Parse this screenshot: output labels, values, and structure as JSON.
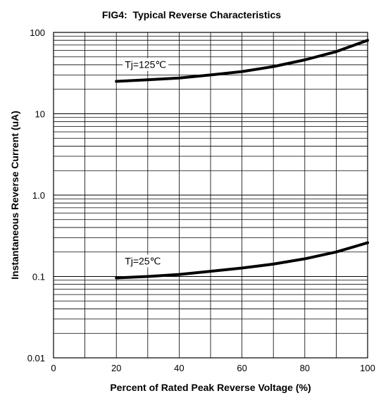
{
  "chart_data": {
    "type": "line",
    "title": "FIG4:  Typical Reverse Characteristics",
    "xlabel": "Percent of Rated Peak Reverse Voltage (%)",
    "ylabel": "Instantaneous Reverse Current (uA)",
    "xlim": [
      0,
      100
    ],
    "ylim": [
      0.01,
      100
    ],
    "yscale": "log",
    "grid": true,
    "x_ticks": [
      "0",
      "20",
      "40",
      "60",
      "80",
      "100"
    ],
    "y_ticks": [
      "0.01",
      "0.1",
      "1.0",
      "10",
      "100"
    ],
    "series": [
      {
        "name": "Tj=125℃",
        "x": [
          20,
          30,
          40,
          50,
          60,
          70,
          80,
          90,
          100
        ],
        "y": [
          25,
          26.2,
          27.5,
          30,
          33,
          38,
          46,
          58,
          80
        ]
      },
      {
        "name": "Tj=25℃",
        "x": [
          20,
          30,
          40,
          50,
          60,
          70,
          80,
          90,
          100
        ],
        "y": [
          0.096,
          0.1,
          0.106,
          0.116,
          0.127,
          0.142,
          0.165,
          0.2,
          0.26
        ]
      }
    ]
  }
}
